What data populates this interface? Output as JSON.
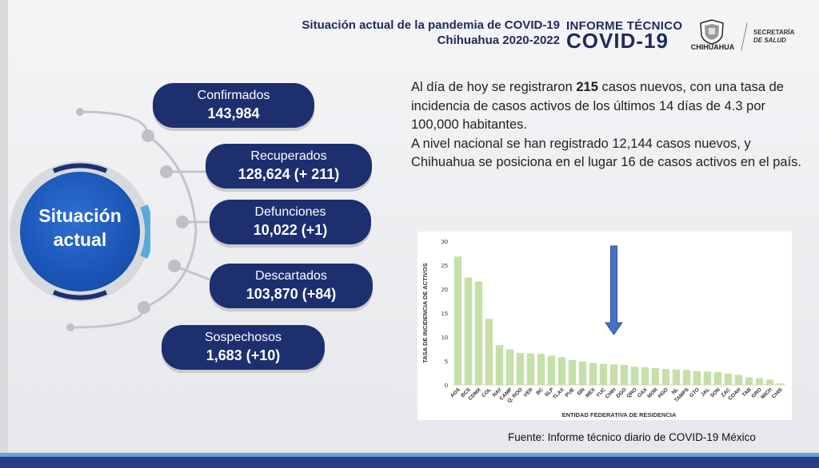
{
  "header": {
    "title_line1": "Situación actual de la pandemia de COVID-19",
    "title_line2": "Chihuahua 2020-2022",
    "brand_top": "INFORME TÉCNICO",
    "brand_big": "COVID-19",
    "state_name": "CHIHUAHUA",
    "secretaria_line1": "SECRETARÍA",
    "secretaria_line2": "DE SALUD",
    "colors": {
      "navy": "#1e2a5a",
      "accent_blue": "#1b57b8"
    }
  },
  "center": {
    "line1": "Situación",
    "line2": "actual"
  },
  "stats": [
    {
      "label": "Confirmados",
      "value": "143,984"
    },
    {
      "label": "Recuperados",
      "value": "128,624 (+ 211)"
    },
    {
      "label": "Defunciones",
      "value": "10,022 (+1)"
    },
    {
      "label": "Descartados",
      "value": "103,870 (+84)"
    },
    {
      "label": "Sospechosos",
      "value": "1,683 (+10)"
    }
  ],
  "summary": {
    "p1_before": "Al día de hoy se registraron ",
    "p1_bold": "215",
    "p1_after": " casos nuevos, con una tasa de incidencia de casos activos de los últimos 14 días de 4.3 por 100,000 habitantes.",
    "p2": "A nivel nacional se han registrado 12,144 casos nuevos, y Chihuahua se posiciona en el lugar 16 de casos activos en el país."
  },
  "chart_data": {
    "type": "bar",
    "title": "",
    "xlabel": "ENTIDAD FEDERATIVA DE RESIDENCIA",
    "ylabel": "TASA DE INCIDENCIA DE ACTIVOS",
    "ylim": [
      0,
      30
    ],
    "yticks": [
      0,
      5,
      10,
      15,
      20,
      25,
      30
    ],
    "grid": false,
    "bar_color": "#c5e0a8",
    "arrow_color": "#4472c4",
    "highlight_category": "CHIH",
    "categories": [
      "AGS",
      "BCS",
      "CDMX",
      "COL",
      "NAY",
      "CAMP",
      "Q. ROO",
      "VER",
      "BC",
      "SLP",
      "TLAX",
      "PUE",
      "SIN",
      "MEX",
      "YUC",
      "CHIH",
      "DGO",
      "QRO",
      "OAX",
      "MOR",
      "HGO",
      "NL",
      "TAMPS",
      "GTO",
      "JAL",
      "SON",
      "ZAC",
      "COAH",
      "TAB",
      "GRO",
      "MICH",
      "CHIS"
    ],
    "values": [
      26.8,
      22.4,
      21.6,
      13.8,
      8.3,
      7.4,
      6.7,
      6.6,
      6.5,
      6.1,
      5.8,
      5.2,
      4.9,
      4.6,
      4.4,
      4.3,
      4.2,
      3.8,
      3.7,
      3.5,
      3.3,
      3.2,
      3.1,
      2.9,
      2.8,
      2.7,
      2.4,
      2.1,
      1.6,
      1.4,
      1.1,
      0.3
    ]
  },
  "source": "Fuente: Informe técnico diario de COVID-19 México"
}
